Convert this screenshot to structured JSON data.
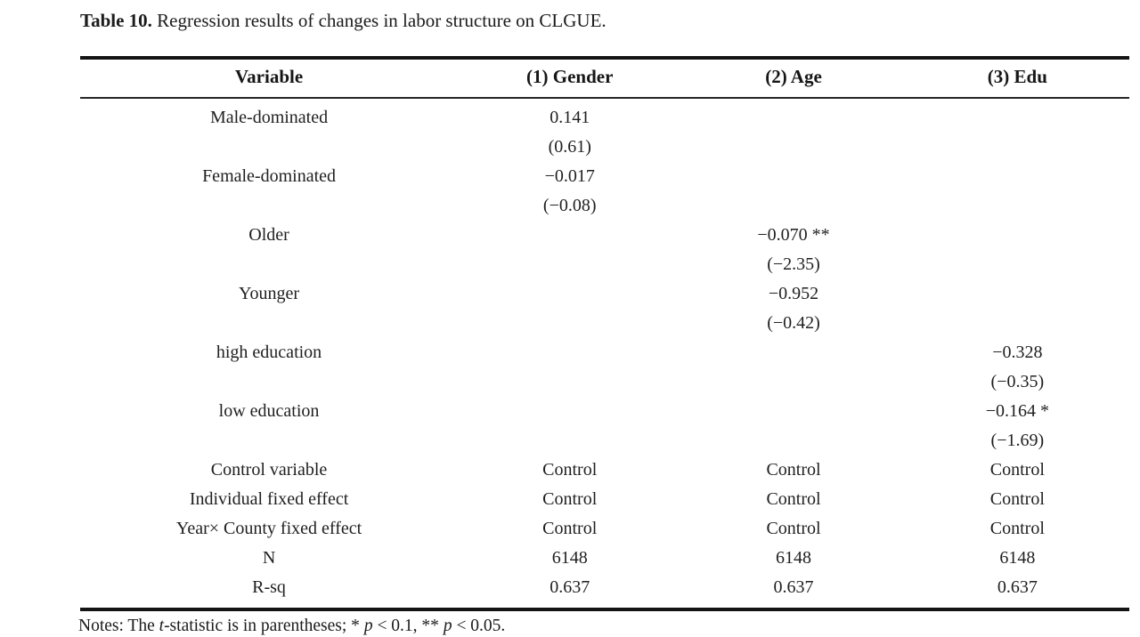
{
  "title": {
    "label": "Table 10.",
    "text": "Regression results of changes in labor structure on CLGUE."
  },
  "table": {
    "columns": [
      "Variable",
      "(1) Gender",
      "(2) Age",
      "(3) Edu"
    ],
    "rows": [
      [
        "Male-dominated",
        "0.141",
        "",
        ""
      ],
      [
        "",
        "(0.61)",
        "",
        ""
      ],
      [
        "Female-dominated",
        "−0.017",
        "",
        ""
      ],
      [
        "",
        "(−0.08)",
        "",
        ""
      ],
      [
        "Older",
        "",
        "−0.070 **",
        ""
      ],
      [
        "",
        "",
        "(−2.35)",
        ""
      ],
      [
        "Younger",
        "",
        "−0.952",
        ""
      ],
      [
        "",
        "",
        "(−0.42)",
        ""
      ],
      [
        "high education",
        "",
        "",
        "−0.328"
      ],
      [
        "",
        "",
        "",
        "(−0.35)"
      ],
      [
        "low education",
        "",
        "",
        "−0.164 *"
      ],
      [
        "",
        "",
        "",
        "(−1.69)"
      ],
      [
        "Control variable",
        "Control",
        "Control",
        "Control"
      ],
      [
        "Individual fixed effect",
        "Control",
        "Control",
        "Control"
      ],
      [
        "Year× County fixed effect",
        "Control",
        "Control",
        "Control"
      ],
      [
        "N",
        "6148",
        "6148",
        "6148"
      ],
      [
        "R-sq",
        "0.637",
        "0.637",
        "0.637"
      ]
    ]
  },
  "notes": {
    "prefix": "Notes: The ",
    "italic_t": "t",
    "mid1": "-statistic is in parentheses; * ",
    "italic_p1": "p",
    "mid2": " < 0.1, ** ",
    "italic_p2": "p",
    "suffix": " < 0.05."
  }
}
